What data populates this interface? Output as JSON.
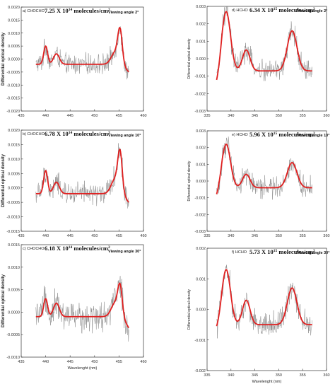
{
  "chart_data": [
    {
      "id": "a",
      "type": "line",
      "panel_label": "a) CHOCHO",
      "concentration": "7.25 X 10",
      "exponent": "14",
      "unit": " molecules/cm",
      "unit_exp": "2",
      "viewing": "Viewing angle 2°",
      "xlim": [
        435,
        460
      ],
      "ylim": [
        -0.002,
        0.002
      ],
      "xticks": [
        435,
        440,
        445,
        450,
        455,
        460
      ],
      "xtick_labels": [
        "435",
        "440",
        "445",
        "450",
        "455",
        "460"
      ],
      "yticks": [
        -0.002,
        -0.0015,
        -0.001,
        -0.0005,
        0,
        0.0005,
        0.001,
        0.0015,
        0.002
      ],
      "ytick_labels": [
        "-0.0020",
        "-0.0015",
        "-0.0010",
        "-0.0005",
        "0.0000",
        "0.0005",
        "0.0010",
        "0.0015",
        "0.0020"
      ],
      "ylabel": "Differential optical density",
      "xlabel": "",
      "x_range": [
        438,
        457
      ],
      "noise_amp": 0.00035,
      "fit": {
        "baseline": -0.0002,
        "peaks": [
          {
            "c": 440,
            "a": 0.0007,
            "w": 0.4
          },
          {
            "c": 442.2,
            "a": 0.0004,
            "w": 0.6
          },
          {
            "c": 454.2,
            "a": 0.00045,
            "w": 0.8
          },
          {
            "c": 455.2,
            "a": 0.0012,
            "w": 0.45
          }
        ],
        "tail": -0.0005
      }
    },
    {
      "id": "b",
      "type": "line",
      "panel_label": "b) CHOCHO",
      "concentration": "6.78 X 10",
      "exponent": "14",
      "unit": " molecules/cm",
      "unit_exp": "2",
      "viewing": "Viewing angle 10°",
      "xlim": [
        435,
        460
      ],
      "ylim": [
        -0.0015,
        0.002
      ],
      "xticks": [
        435,
        440,
        445,
        450,
        455,
        460
      ],
      "xtick_labels": [
        "435",
        "440",
        "445",
        "450",
        "455",
        "460"
      ],
      "yticks": [
        -0.0015,
        -0.001,
        -0.0005,
        0,
        0.0005,
        0.001,
        0.0015,
        0.002
      ],
      "ytick_labels": [
        "-0.0015",
        "-0.0010",
        "-0.0005",
        "0.0000",
        "0.0005",
        "0.0010",
        "0.0015",
        "0.0020"
      ],
      "ylabel": "Differential optical density",
      "xlabel": "",
      "x_range": [
        438,
        457
      ],
      "noise_amp": 0.00035,
      "fit": {
        "baseline": -0.0002,
        "peaks": [
          {
            "c": 440,
            "a": 0.0008,
            "w": 0.4
          },
          {
            "c": 442.2,
            "a": 0.0004,
            "w": 0.6
          },
          {
            "c": 454.2,
            "a": 0.0005,
            "w": 0.8
          },
          {
            "c": 455.2,
            "a": 0.0013,
            "w": 0.45
          }
        ],
        "tail": -0.0005
      }
    },
    {
      "id": "c",
      "type": "line",
      "panel_label": "c) CHOCHO",
      "concentration": "6.18 X 10",
      "exponent": "14",
      "unit": " molecules/cm",
      "unit_exp": "2",
      "viewing": "Viewing angle 30°",
      "xlim": [
        435,
        460
      ],
      "ylim": [
        -0.001,
        0.0015
      ],
      "xticks": [
        435,
        440,
        445,
        450,
        455,
        460
      ],
      "xtick_labels": [
        "435",
        "440",
        "445",
        "450",
        "455",
        "460"
      ],
      "yticks": [
        -0.001,
        -0.0005,
        0,
        0.0005,
        0.001,
        0.0015
      ],
      "ytick_labels": [
        "-0.0010",
        "-0.0005",
        "0.0000",
        "0.0005",
        "0.0010",
        "0.0015"
      ],
      "ylabel": "Differential optical density",
      "xlabel": "Wavelenght (nm)",
      "x_range": [
        438,
        457
      ],
      "noise_amp": 0.0003,
      "fit": {
        "baseline": -0.0001,
        "peaks": [
          {
            "c": 440,
            "a": 0.0004,
            "w": 0.4
          },
          {
            "c": 442.2,
            "a": 0.0003,
            "w": 0.6
          },
          {
            "c": 454.2,
            "a": 0.0003,
            "w": 0.8
          },
          {
            "c": 455.2,
            "a": 0.0006,
            "w": 0.45
          }
        ],
        "tail": -0.00035
      }
    },
    {
      "id": "d",
      "type": "line",
      "panel_label": "d) HCHO",
      "concentration": "6.34 X 10",
      "exponent": "15",
      "unit": " molecules/cm",
      "unit_exp": "2",
      "viewing": "Viewing angle 2°",
      "xlim": [
        335,
        360
      ],
      "ylim": [
        -0.003,
        0.003
      ],
      "xticks": [
        335,
        340,
        345,
        350,
        355,
        360
      ],
      "xtick_labels": [
        "335",
        "340",
        "345",
        "350",
        "355",
        "360"
      ],
      "yticks": [
        -0.003,
        -0.002,
        -0.001,
        0,
        0.001,
        0.002,
        0.003
      ],
      "ytick_labels": [
        "-0.003",
        "-0.002",
        "-0.001",
        "0.000",
        "0.001",
        "0.002",
        "0.003"
      ],
      "ylabel": "Differential optical density",
      "xlabel": "",
      "x_range": [
        337,
        357
      ],
      "noise_amp": 0.0006,
      "fit": {
        "baseline": -0.0007,
        "peaks": [
          {
            "c": 339,
            "a": 0.0034,
            "w": 0.9
          },
          {
            "c": 343.2,
            "a": 0.0012,
            "w": 0.8
          },
          {
            "c": 352.8,
            "a": 0.0023,
            "w": 1.0
          }
        ],
        "start": -0.0015
      }
    },
    {
      "id": "e",
      "type": "line",
      "panel_label": "e) HCHO",
      "concentration": "5.96 X 10",
      "exponent": "15",
      "unit": " molecules/cm",
      "unit_exp": "2",
      "viewing": "Viewing angle 10°",
      "xlim": [
        335,
        360
      ],
      "ylim": [
        -0.003,
        0.003
      ],
      "xticks": [
        335,
        340,
        345,
        350,
        355,
        360
      ],
      "xtick_labels": [
        "335",
        "340",
        "345",
        "350",
        "355",
        "360"
      ],
      "yticks": [
        -0.003,
        -0.002,
        -0.001,
        0,
        0.001,
        0.002,
        0.003
      ],
      "ytick_labels": [
        "-0.003",
        "-0.002",
        "-0.001",
        "0.000",
        "0.001",
        "0.002",
        "0.003"
      ],
      "ylabel": "Differential optical density",
      "xlabel": "",
      "x_range": [
        337,
        357
      ],
      "noise_amp": 0.0006,
      "fit": {
        "baseline": -0.0004,
        "peaks": [
          {
            "c": 339,
            "a": 0.0026,
            "w": 0.9
          },
          {
            "c": 343.2,
            "a": 0.0008,
            "w": 0.8
          },
          {
            "c": 352.8,
            "a": 0.0015,
            "w": 1.0
          }
        ],
        "start": -0.001
      }
    },
    {
      "id": "f",
      "type": "line",
      "panel_label": "f) HCHO",
      "concentration": "5.73 X 10",
      "exponent": "15",
      "unit": " molecules/cm",
      "unit_exp": "2",
      "viewing": "Viewing angle 30°",
      "xlim": [
        335,
        360
      ],
      "ylim": [
        -0.002,
        0.002
      ],
      "xticks": [
        335,
        340,
        345,
        350,
        355,
        360
      ],
      "xtick_labels": [
        "335",
        "340",
        "345",
        "350",
        "355",
        "360"
      ],
      "yticks": [
        -0.002,
        -0.001,
        0,
        0.001,
        0.002
      ],
      "ytick_labels": [
        "-0.002",
        "-0.001",
        "0.000",
        "0.001",
        "0.002"
      ],
      "ylabel": "Differential optical density",
      "xlabel": "Wavelenght (nm)",
      "x_range": [
        337,
        357
      ],
      "noise_amp": 0.0004,
      "fit": {
        "baseline": -0.0005,
        "peaks": [
          {
            "c": 339,
            "a": 0.0018,
            "w": 0.9
          },
          {
            "c": 343.2,
            "a": 0.0008,
            "w": 0.8
          },
          {
            "c": 352.8,
            "a": 0.0012,
            "w": 1.0
          }
        ],
        "start": -0.0007
      }
    }
  ]
}
